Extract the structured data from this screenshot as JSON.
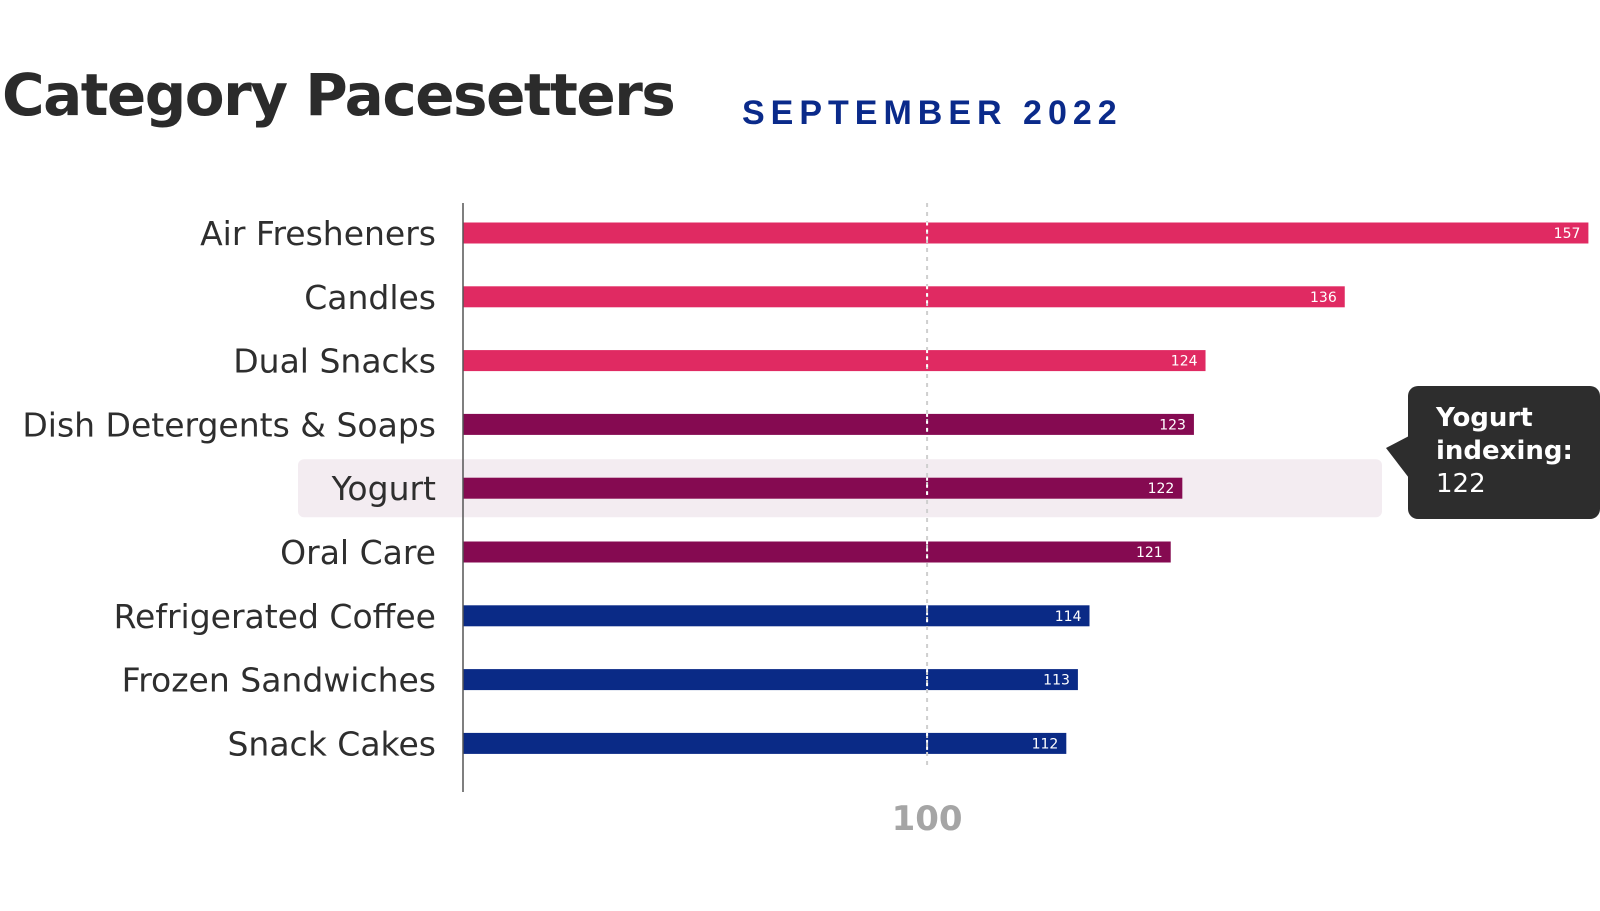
{
  "header": {
    "title": "Category Pacesetters",
    "subtitle": "SEPTEMBER 2022"
  },
  "callout": {
    "line1": "Yogurt",
    "line2": "indexing:",
    "line3": "122"
  },
  "colors": {
    "top_tier": "#e02a62",
    "mid_tier": "#850a51",
    "low_tier": "#0a2a86",
    "highlight_row": "#f3ecf1",
    "reference_line": "#cfcfcf",
    "axis": "#555555"
  },
  "chart_data": {
    "type": "bar",
    "orientation": "horizontal",
    "title": "Category Pacesetters",
    "subtitle": "SEPTEMBER 2022",
    "categories": [
      "Air Fresheners",
      "Candles",
      "Dual Snacks",
      "Dish Detergents & Soaps",
      "Yogurt",
      "Oral Care",
      "Refrigerated Coffee",
      "Frozen Sandwiches",
      "Snack Cakes"
    ],
    "values": [
      157,
      136,
      124,
      123,
      122,
      121,
      114,
      113,
      112
    ],
    "bar_colors": [
      "#e02a62",
      "#e02a62",
      "#e02a62",
      "#850a51",
      "#850a51",
      "#850a51",
      "#0a2a86",
      "#0a2a86",
      "#0a2a86"
    ],
    "highlighted_category": "Yogurt",
    "reference_line": {
      "value": 100,
      "label": "100",
      "style": "dotted"
    },
    "xlim": [
      60,
      158
    ],
    "xlabel": "",
    "ylabel": "",
    "grid": false,
    "legend": "none"
  }
}
